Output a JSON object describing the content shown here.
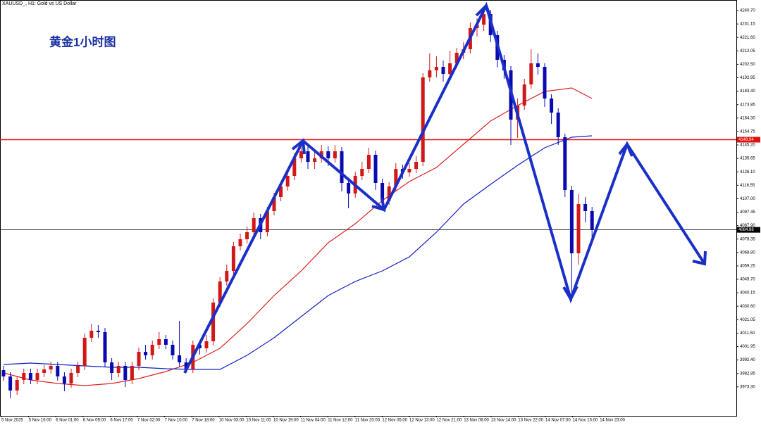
{
  "chart_data": {
    "type": "candlestick",
    "title": "XAUUSD_, H1:  Gold vs US Dollar",
    "annotation": "黄金1小时图",
    "up_color": "#d01818",
    "down_color": "#0a0ab0",
    "ylim": [
      3953.2,
      4248.2
    ],
    "yticks": [
      {
        "value": 4240.7,
        "label": "4240.70"
      },
      4231.15,
      {
        "value": 4221.6,
        "label": "4221.60"
      },
      4212.05,
      {
        "value": 4202.5,
        "label": "4202.50"
      },
      4192.95,
      {
        "value": 4183.4,
        "label": "4183.40"
      },
      4173.85,
      {
        "value": 4164.3,
        "label": "4164.30"
      },
      4154.75,
      {
        "value": 4145.2,
        "label": "4145.20"
      },
      4135.65,
      {
        "value": 4126.1,
        "label": "4126.10"
      },
      4116.55,
      {
        "value": 4107.0,
        "label": "4107.00"
      },
      4097.45,
      {
        "value": 4087.9,
        "label": "4087.90"
      },
      4078.35,
      {
        "value": 4068.8,
        "label": "4068.80"
      },
      4059.25,
      {
        "value": 4049.7,
        "label": "4049.70"
      },
      4040.15,
      {
        "value": 4030.6,
        "label": "4030.60"
      },
      4021.05,
      {
        "value": 4011.5,
        "label": "4011.50"
      },
      4001.95,
      {
        "value": 3992.4,
        "label": "3992.40"
      },
      3982.85,
      {
        "value": 3973.3,
        "label": "3973.30"
      }
    ],
    "x_labels": [
      "5 Nov 2025",
      "5 Nov 16:00",
      "6 Nov 01:00",
      "6 Nov 09:00",
      "6 Nov 17:00",
      "7 Nov 02:00",
      "7 Nov 10:00",
      "7 Nov 18:00",
      "10 Nov 03:00",
      "10 Nov 11:00",
      "10 Nov 19:00",
      "11 Nov 04:00",
      "11 Nov 12:00",
      "11 Nov 20:00",
      "12 Nov 05:00",
      "12 Nov 13:00",
      "12 Nov 21:00",
      "13 Nov 06:00",
      "13 Nov 14:00",
      "13 Nov 22:00",
      "14 Nov 07:00",
      "14 Nov 15:00",
      "14 Nov 23:00"
    ],
    "hlines": [
      {
        "value": 4148.94,
        "color": "#e01010"
      },
      {
        "value": 4084.88,
        "color": "#000000"
      }
    ],
    "candles": [
      [
        3985.2,
        3988.2,
        3977.7,
        3980.7
      ],
      [
        3980.7,
        3983.7,
        3965.2,
        3970.7
      ],
      [
        3970.7,
        3981.2,
        3967.7,
        3978.2
      ],
      [
        3978.2,
        3986.2,
        3975.2,
        3983.2
      ],
      [
        3983.2,
        3986.2,
        3975.2,
        3978.2
      ],
      [
        3978.2,
        3986.2,
        3975.2,
        3983.2
      ],
      [
        3983.2,
        3988.7,
        3980.2,
        3985.7
      ],
      [
        3985.7,
        3991.2,
        3982.7,
        3988.2
      ],
      [
        3988.2,
        3991.2,
        3977.7,
        3980.7
      ],
      [
        3980.7,
        3983.7,
        3970.2,
        3975.7
      ],
      [
        3975.7,
        3986.2,
        3972.7,
        3983.2
      ],
      [
        3983.2,
        3991.2,
        3980.2,
        3988.2
      ],
      [
        3988.2,
        4011.2,
        3985.2,
        4008.2
      ],
      [
        4008.2,
        4018.2,
        4005.2,
        4013.2
      ],
      [
        4013.2,
        4017.2,
        4008.2,
        4012.2
      ],
      [
        4012.2,
        4015.2,
        3987.7,
        3990.7
      ],
      [
        3990.7,
        3993.7,
        3978.2,
        3983.2
      ],
      [
        3983.2,
        3991.2,
        3980.2,
        3988.2
      ],
      [
        3988.2,
        3991.2,
        3973.2,
        3978.2
      ],
      [
        3978.2,
        3991.2,
        3975.2,
        3988.2
      ],
      [
        3988.2,
        4001.2,
        3985.2,
        3998.2
      ],
      [
        3998.2,
        4003.2,
        3992.7,
        3995.7
      ],
      [
        3995.7,
        4006.2,
        3992.7,
        4003.2
      ],
      [
        4003.2,
        4012.2,
        4000.2,
        4007.2
      ],
      [
        4007.2,
        4010.2,
        4000.2,
        4003.2
      ],
      [
        4003.2,
        4006.2,
        3992.7,
        3995.7
      ],
      [
        3995.7,
        4020.2,
        3987.7,
        3990.7
      ],
      [
        3990.7,
        3993.7,
        3983.2,
        3985.7
      ],
      [
        3985.7,
        4006.2,
        3983.2,
        4003.2
      ],
      [
        4003.2,
        4006.2,
        3996.2,
        4000.7
      ],
      [
        4000.7,
        4010.2,
        3997.7,
        4005.7
      ],
      [
        4005.7,
        4036.2,
        4002.7,
        4033.2
      ],
      [
        4033.2,
        4051.2,
        4030.2,
        4048.2
      ],
      [
        4048.2,
        4060.2,
        4045.2,
        4055.7
      ],
      [
        4055.7,
        4076.2,
        4052.7,
        4073.2
      ],
      [
        4073.2,
        4082.2,
        4070.2,
        4078.2
      ],
      [
        4078.2,
        4087.2,
        4075.2,
        4083.2
      ],
      [
        4083.2,
        4097.2,
        4080.2,
        4093.2
      ],
      [
        4093.2,
        4096.2,
        4078.2,
        4083.2
      ],
      [
        4083.2,
        4101.2,
        4080.2,
        4098.2
      ],
      [
        4098.2,
        4111.2,
        4095.2,
        4108.2
      ],
      [
        4108.2,
        4119.2,
        4105.2,
        4115.7
      ],
      [
        4115.7,
        4126.2,
        4112.7,
        4123.2
      ],
      [
        4123.2,
        4139.2,
        4120.2,
        4135.7
      ],
      [
        4135.7,
        4147.2,
        4132.7,
        4140.7
      ],
      [
        4140.7,
        4144.2,
        4128.2,
        4133.2
      ],
      [
        4133.2,
        4140.2,
        4128.2,
        4135.7
      ],
      [
        4135.7,
        4145.2,
        4132.7,
        4140.7
      ],
      [
        4140.7,
        4144.2,
        4130.2,
        4135.7
      ],
      [
        4135.7,
        4145.2,
        4132.7,
        4140.7
      ],
      [
        4140.7,
        4143.7,
        4112.2,
        4118.2
      ],
      [
        4118.2,
        4121.2,
        4100.2,
        4110.7
      ],
      [
        4110.7,
        4126.2,
        4107.7,
        4123.2
      ],
      [
        4123.2,
        4133.2,
        4120.2,
        4128.2
      ],
      [
        4128.2,
        4143.2,
        4125.2,
        4138.2
      ],
      [
        4138.2,
        4141.2,
        4113.2,
        4118.2
      ],
      [
        4118.2,
        4121.2,
        4100.7,
        4105.7
      ],
      [
        4105.7,
        4118.7,
        4102.7,
        4115.7
      ],
      [
        4115.7,
        4132.2,
        4112.7,
        4128.2
      ],
      [
        4128.2,
        4131.2,
        4121.2,
        4125.7
      ],
      [
        4125.7,
        4132.2,
        4122.7,
        4128.2
      ],
      [
        4128.2,
        4137.2,
        4125.2,
        4133.2
      ],
      [
        4133.2,
        4196.2,
        4130.2,
        4193.2
      ],
      [
        4193.2,
        4210.2,
        4190.2,
        4198.2
      ],
      [
        4198.2,
        4208.2,
        4193.2,
        4200.7
      ],
      [
        4200.7,
        4205.2,
        4190.2,
        4195.7
      ],
      [
        4195.7,
        4212.2,
        4192.7,
        4203.2
      ],
      [
        4203.2,
        4214.2,
        4200.2,
        4210.7
      ],
      [
        4210.7,
        4218.2,
        4206.2,
        4213.2
      ],
      [
        4213.2,
        4232.2,
        4210.2,
        4228.2
      ],
      [
        4228.2,
        4235.2,
        4222.2,
        4230.7
      ],
      [
        4230.7,
        4242.2,
        4226.2,
        4238.2
      ],
      [
        4238.2,
        4241.2,
        4218.2,
        4223.2
      ],
      [
        4223.2,
        4226.2,
        4200.2,
        4205.7
      ],
      [
        4205.7,
        4209.2,
        4192.2,
        4198.2
      ],
      [
        4198.2,
        4201.2,
        4145.2,
        4163.2
      ],
      [
        4163.2,
        4178.2,
        4150.2,
        4173.2
      ],
      [
        4173.2,
        4192.2,
        4170.2,
        4188.2
      ],
      [
        4188.2,
        4213.2,
        4185.2,
        4203.2
      ],
      [
        4203.2,
        4210.2,
        4195.2,
        4200.7
      ],
      [
        4200.7,
        4203.2,
        4172.2,
        4178.2
      ],
      [
        4178.2,
        4181.2,
        4160.2,
        4168.2
      ],
      [
        4168.2,
        4171.2,
        4145.2,
        4150.7
      ],
      [
        4150.7,
        4153.2,
        4108.2,
        4113.2
      ],
      [
        4113.2,
        4116.2,
        4034.2,
        4068.2
      ],
      [
        4068.2,
        4110.2,
        4060.2,
        4103.2
      ],
      [
        4103.2,
        4108.2,
        4090.2,
        4098.2
      ],
      [
        4098.2,
        4101.2,
        4078.2,
        4084.88
      ]
    ],
    "lines": [
      {
        "color": "#e02020",
        "x": [
          0,
          4,
          8,
          12,
          16,
          20,
          24,
          28,
          32,
          36,
          40,
          44,
          48,
          52,
          56,
          60,
          64,
          68,
          72,
          76,
          80,
          84,
          87
        ],
        "values": [
          3983.2,
          3978.2,
          3975.7,
          3974.2,
          3975.7,
          3979.2,
          3984.2,
          3990.7,
          4000.7,
          4018.2,
          4038.2,
          4055.7,
          4075.7,
          4089.2,
          4105.7,
          4119.2,
          4129.2,
          4145.7,
          4162.2,
          4173.2,
          4183.2,
          4185.7,
          4178.2
        ]
      },
      {
        "color": "#1020c0",
        "x": [
          0,
          4,
          8,
          12,
          16,
          20,
          24,
          28,
          32,
          36,
          40,
          44,
          48,
          52,
          56,
          60,
          64,
          68,
          72,
          76,
          80,
          84,
          87
        ],
        "values": [
          3989.2,
          3990.2,
          3989.2,
          3988.2,
          3987.2,
          3987.2,
          3986.2,
          3985.7,
          3985.7,
          3995.7,
          4008.2,
          4023.2,
          4038.2,
          4048.2,
          4055.7,
          4065.7,
          4083.2,
          4103.2,
          4117.2,
          4130.7,
          4143.2,
          4150.7,
          4151.7
        ]
      }
    ]
  }
}
